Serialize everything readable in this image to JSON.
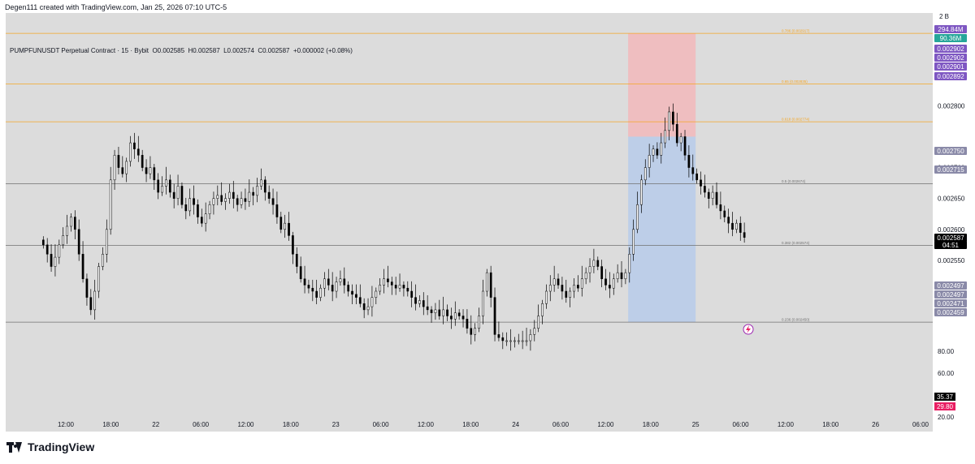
{
  "header": {
    "credit": "Degen111 created with TradingView.com, Jan 25, 2026 07:10 UTC-5",
    "symbol_line": "PUMPFUNUSDT Perpetual Contract · 15 · Bybit  O0.002585  H0.002587  L0.002574  C0.002587  +0.000002 (+0.08%)"
  },
  "footer": {
    "brand": "TradingView"
  },
  "colors": {
    "plot_bg": "#dcdcdc",
    "fib_orange": "#f5a623",
    "fib_gray": "#707070",
    "long_stop": "#f2b8bb",
    "long_target": "#b7cbea",
    "candle": "#000000",
    "purple_badge": "#7e57c2",
    "teal_badge": "#26a69a",
    "gray_badge": "#8a8aa8",
    "pink_badge": "#e91e63"
  },
  "chart_data": {
    "type": "candlestick",
    "symbol": "PUMPFUNUSDT",
    "interval": "15",
    "exchange": "Bybit",
    "ohlc_last": {
      "open": 0.002585,
      "high": 0.002587,
      "low": 0.002574,
      "close": 0.002587,
      "change": 2e-06,
      "change_pct": "+0.08%"
    },
    "price_axis": {
      "ticks": [
        "0.002850",
        "0.002800",
        "0.002700",
        "0.002650",
        "0.002600",
        "0.002550"
      ],
      "ylim": [
        0.00242,
        0.00295
      ]
    },
    "volume_axis_label": "2 B",
    "time_axis": {
      "ticks": [
        {
          "label": "12:00",
          "hours": 12
        },
        {
          "label": "18:00",
          "hours": 18
        },
        {
          "label": "22",
          "hours": 24
        },
        {
          "label": "06:00",
          "hours": 30
        },
        {
          "label": "12:00",
          "hours": 36
        },
        {
          "label": "18:00",
          "hours": 42
        },
        {
          "label": "23",
          "hours": 48
        },
        {
          "label": "06:00",
          "hours": 54
        },
        {
          "label": "12:00",
          "hours": 60
        },
        {
          "label": "18:00",
          "hours": 66
        },
        {
          "label": "24",
          "hours": 72
        },
        {
          "label": "06:00",
          "hours": 78
        },
        {
          "label": "12:00",
          "hours": 84
        },
        {
          "label": "18:00",
          "hours": 90
        },
        {
          "label": "25",
          "hours": 96
        },
        {
          "label": "06:00",
          "hours": 102
        },
        {
          "label": "12:00",
          "hours": 108
        },
        {
          "label": "18:00",
          "hours": 114
        },
        {
          "label": "26",
          "hours": 120
        },
        {
          "label": "06:00",
          "hours": 126
        }
      ]
    },
    "fib_levels": [
      {
        "label": "0.786 (0.002917)",
        "price": 0.002917,
        "color": "orange"
      },
      {
        "label": "0.65 (0.002835)",
        "price": 0.002835,
        "color": "orange"
      },
      {
        "label": "0.618 (0.002774)",
        "price": 0.002774,
        "color": "orange"
      },
      {
        "label": "0.5 (0.002674)",
        "price": 0.002674,
        "color": "gray"
      },
      {
        "label": "0.382 (0.002574)",
        "price": 0.002574,
        "color": "gray"
      },
      {
        "label": "0.236 (0.002450)",
        "price": 0.00245,
        "color": "gray"
      }
    ],
    "long_position": {
      "start_hours": 87,
      "end_hours": 96,
      "target_top": 0.002917,
      "entry": 0.00275,
      "stop_bottom": 0.00245
    },
    "candles_close": [
      0.002575,
      0.00256,
      0.00254,
      0.002555,
      0.002575,
      0.00259,
      0.002605,
      0.00262,
      0.0026,
      0.00256,
      0.00252,
      0.00249,
      0.00247,
      0.0025,
      0.00254,
      0.00256,
      0.0026,
      0.00268,
      0.00272,
      0.0027,
      0.00269,
      0.00271,
      0.00274,
      0.00273,
      0.00272,
      0.0027,
      0.00269,
      0.0027,
      0.00268,
      0.00266,
      0.00267,
      0.00268,
      0.00266,
      0.00265,
      0.00267,
      0.00264,
      0.00263,
      0.00265,
      0.00264,
      0.00262,
      0.00261,
      0.002625,
      0.00264,
      0.00265,
      0.002655,
      0.002645,
      0.00265,
      0.00266,
      0.00265,
      0.00264,
      0.00265,
      0.002645,
      0.00266,
      0.002655,
      0.00267,
      0.00268,
      0.00266,
      0.00265,
      0.00264,
      0.00262,
      0.0026,
      0.00261,
      0.00259,
      0.00256,
      0.00254,
      0.00252,
      0.00251,
      0.002505,
      0.0025,
      0.00249,
      0.002505,
      0.00252,
      0.00251,
      0.0025,
      0.002515,
      0.00252,
      0.00251,
      0.0025,
      0.002495,
      0.00249,
      0.00248,
      0.00247,
      0.002475,
      0.00249,
      0.0025,
      0.00251,
      0.00252,
      0.002515,
      0.00251,
      0.002505,
      0.00251,
      0.002505,
      0.0025,
      0.00249,
      0.00248,
      0.002485,
      0.002475,
      0.00247,
      0.002465,
      0.00247,
      0.00246,
      0.00247,
      0.00246,
      0.002455,
      0.002465,
      0.00246,
      0.002455,
      0.00244,
      0.00243,
      0.00244,
      0.00246,
      0.0025,
      0.00253,
      0.00249,
      0.00243,
      0.002425,
      0.00242,
      0.00242,
      0.00242,
      0.00242,
      0.00242,
      0.00242,
      0.00242,
      0.00243,
      0.00244,
      0.00246,
      0.00248,
      0.0025,
      0.00251,
      0.00252,
      0.00251,
      0.0025,
      0.00249,
      0.0025,
      0.00251,
      0.002505,
      0.00252,
      0.00253,
      0.00254,
      0.00255,
      0.00254,
      0.00252,
      0.00251,
      0.002505,
      0.00252,
      0.00253,
      0.00252,
      0.00253,
      0.00256,
      0.0026,
      0.00264,
      0.00268,
      0.0027,
      0.00272,
      0.00273,
      0.00272,
      0.00274,
      0.00276,
      0.00279,
      0.00277,
      0.00274,
      0.00275,
      0.00272,
      0.0027,
      0.00269,
      0.00268,
      0.00267,
      0.00266,
      0.00265,
      0.00266,
      0.00264,
      0.00263,
      0.00262,
      0.00261,
      0.0026,
      0.00261,
      0.002595,
      0.002587
    ]
  },
  "right_badges": [
    {
      "text": "294.84M",
      "color": "purple_badge"
    },
    {
      "text": "90.36M",
      "color": "teal_badge"
    },
    {
      "text": "0.002902",
      "color": "purple_badge"
    },
    {
      "text": "0.002902",
      "color": "purple_badge"
    },
    {
      "text": "0.002901",
      "color": "purple_badge"
    },
    {
      "text": "0.002892",
      "color": "purple_badge"
    },
    {
      "text": "0.002750",
      "color": "gray_badge"
    },
    {
      "text": "0.002715",
      "color": "gray_badge"
    },
    {
      "text": "0.002587",
      "color": "black"
    },
    {
      "text": "04:51",
      "color": "black"
    },
    {
      "text": "0.002497",
      "color": "gray_badge"
    },
    {
      "text": "0.002497",
      "color": "gray_badge"
    },
    {
      "text": "0.002471",
      "color": "gray_badge"
    },
    {
      "text": "0.002459",
      "color": "gray_badge"
    }
  ],
  "indicator_axis": {
    "ticks": [
      "80.00",
      "60.00",
      "20.00"
    ],
    "values": [
      {
        "text": "35.37",
        "color": "black"
      },
      {
        "text": "29.80",
        "color": "pink_badge"
      }
    ]
  }
}
